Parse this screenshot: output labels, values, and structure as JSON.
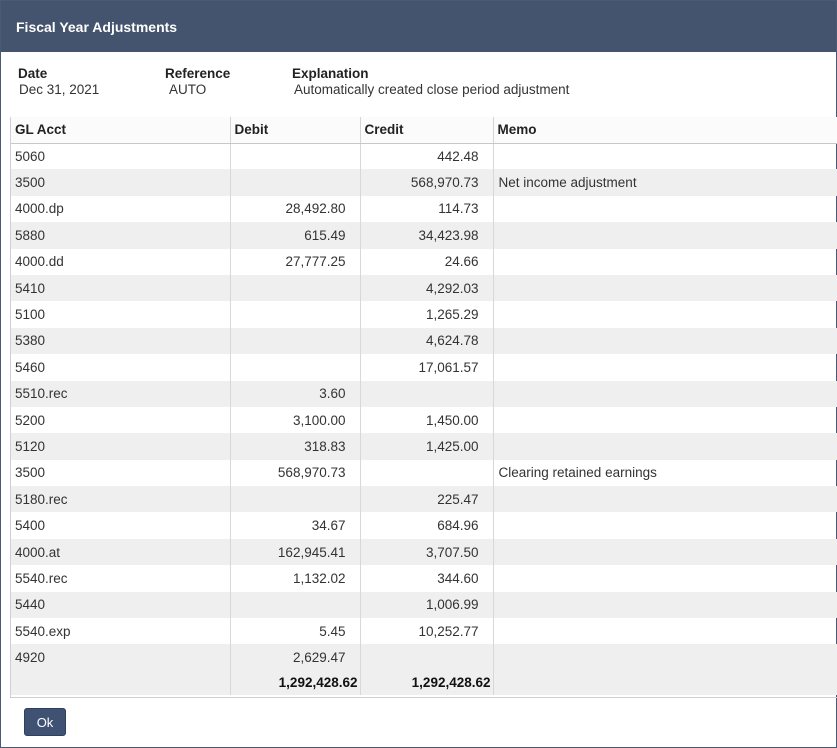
{
  "dialog": {
    "title": "Fiscal Year Adjustments"
  },
  "header": {
    "date_label": "Date",
    "date_value": "Dec 31, 2021",
    "reference_label": "Reference",
    "reference_value": "AUTO",
    "explanation_label": "Explanation",
    "explanation_value": "Automatically created close period adjustment"
  },
  "grid": {
    "columns": [
      "GL Acct",
      "Debit",
      "Credit",
      "Memo"
    ],
    "rows": [
      {
        "acct": "5060",
        "debit": "",
        "credit": "442.48",
        "memo": ""
      },
      {
        "acct": "3500",
        "debit": "",
        "credit": "568,970.73",
        "memo": "Net income adjustment"
      },
      {
        "acct": "4000.dp",
        "debit": "28,492.80",
        "credit": "114.73",
        "memo": ""
      },
      {
        "acct": "5880",
        "debit": "615.49",
        "credit": "34,423.98",
        "memo": ""
      },
      {
        "acct": "4000.dd",
        "debit": "27,777.25",
        "credit": "24.66",
        "memo": ""
      },
      {
        "acct": "5410",
        "debit": "",
        "credit": "4,292.03",
        "memo": ""
      },
      {
        "acct": "5100",
        "debit": "",
        "credit": "1,265.29",
        "memo": ""
      },
      {
        "acct": "5380",
        "debit": "",
        "credit": "4,624.78",
        "memo": ""
      },
      {
        "acct": "5460",
        "debit": "",
        "credit": "17,061.57",
        "memo": ""
      },
      {
        "acct": "5510.rec",
        "debit": "3.60",
        "credit": "",
        "memo": ""
      },
      {
        "acct": "5200",
        "debit": "3,100.00",
        "credit": "1,450.00",
        "memo": ""
      },
      {
        "acct": "5120",
        "debit": "318.83",
        "credit": "1,425.00",
        "memo": ""
      },
      {
        "acct": "3500",
        "debit": "568,970.73",
        "credit": "",
        "memo": "Clearing retained earnings"
      },
      {
        "acct": "5180.rec",
        "debit": "",
        "credit": "225.47",
        "memo": ""
      },
      {
        "acct": "5400",
        "debit": "34.67",
        "credit": "684.96",
        "memo": ""
      },
      {
        "acct": "4000.at",
        "debit": "162,945.41",
        "credit": "3,707.50",
        "memo": ""
      },
      {
        "acct": "5540.rec",
        "debit": "1,132.02",
        "credit": "344.60",
        "memo": ""
      },
      {
        "acct": "5440",
        "debit": "",
        "credit": "1,006.99",
        "memo": ""
      },
      {
        "acct": "5540.exp",
        "debit": "5.45",
        "credit": "10,252.77",
        "memo": ""
      },
      {
        "acct": "4920",
        "debit": "2,629.47",
        "credit": "",
        "memo": ""
      }
    ],
    "totals": {
      "debit": "1,292,428.62",
      "credit": "1,292,428.62"
    }
  },
  "footer": {
    "ok_label": "Ok"
  }
}
